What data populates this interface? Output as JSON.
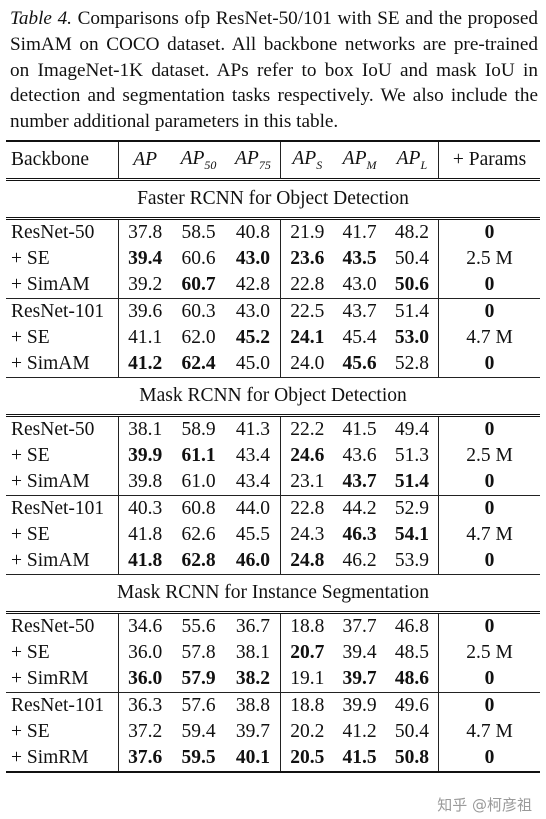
{
  "caption": {
    "label": "Table 4.",
    "text": "Comparisons ofp ResNet-50/101 with SE and the proposed SimAM on COCO dataset. All backbone networks are pre-trained on ImageNet-1K dataset. APs refer to box IoU and mask IoU in detection and segmentation tasks respectively. We also include the number additional parameters in this table."
  },
  "table": {
    "headers": {
      "backbone": "Backbone",
      "ap": "AP",
      "ap50_base": "AP",
      "ap50_sub": "50",
      "ap75_base": "AP",
      "ap75_sub": "75",
      "aps_base": "AP",
      "aps_sub": "S",
      "apm_base": "AP",
      "apm_sub": "M",
      "apl_base": "AP",
      "apl_sub": "L",
      "params": "+ Params"
    },
    "sections": [
      {
        "title": "Faster RCNN for Object Detection",
        "groups": [
          [
            {
              "backbone": "ResNet-50",
              "vals": [
                "37.8",
                "58.5",
                "40.8",
                "21.9",
                "41.7",
                "48.2"
              ],
              "params": "0"
            },
            {
              "backbone": "+ SE",
              "vals": [
                "39.4",
                "60.6",
                "43.0",
                "23.6",
                "43.5",
                "50.4"
              ],
              "params": "2.5 M"
            },
            {
              "backbone": "+ SimAM",
              "vals": [
                "39.2",
                "60.7",
                "42.8",
                "22.8",
                "43.0",
                "50.6"
              ],
              "params": "0"
            }
          ],
          [
            {
              "backbone": "ResNet-101",
              "vals": [
                "39.6",
                "60.3",
                "43.0",
                "22.5",
                "43.7",
                "51.4"
              ],
              "params": "0"
            },
            {
              "backbone": "+ SE",
              "vals": [
                "41.1",
                "62.0",
                "45.2",
                "24.1",
                "45.4",
                "53.0"
              ],
              "params": "4.7 M"
            },
            {
              "backbone": "+ SimAM",
              "vals": [
                "41.2",
                "62.4",
                "45.0",
                "24.0",
                "45.6",
                "52.8"
              ],
              "params": "0"
            }
          ]
        ]
      },
      {
        "title": "Mask RCNN for Object Detection",
        "groups": [
          [
            {
              "backbone": "ResNet-50",
              "vals": [
                "38.1",
                "58.9",
                "41.3",
                "22.2",
                "41.5",
                "49.4"
              ],
              "params": "0"
            },
            {
              "backbone": "+ SE",
              "vals": [
                "39.9",
                "61.1",
                "43.4",
                "24.6",
                "43.6",
                "51.3"
              ],
              "params": "2.5 M"
            },
            {
              "backbone": "+ SimAM",
              "vals": [
                "39.8",
                "61.0",
                "43.4",
                "23.1",
                "43.7",
                "51.4"
              ],
              "params": "0"
            }
          ],
          [
            {
              "backbone": "ResNet-101",
              "vals": [
                "40.3",
                "60.8",
                "44.0",
                "22.8",
                "44.2",
                "52.9"
              ],
              "params": "0"
            },
            {
              "backbone": "+ SE",
              "vals": [
                "41.8",
                "62.6",
                "45.5",
                "24.3",
                "46.3",
                "54.1"
              ],
              "params": "4.7 M"
            },
            {
              "backbone": "+ SimAM",
              "vals": [
                "41.8",
                "62.8",
                "46.0",
                "24.8",
                "46.2",
                "53.9"
              ],
              "params": "0"
            }
          ]
        ]
      },
      {
        "title": "Mask RCNN for Instance Segmentation",
        "groups": [
          [
            {
              "backbone": "ResNet-50",
              "vals": [
                "34.6",
                "55.6",
                "36.7",
                "18.8",
                "37.7",
                "46.8"
              ],
              "params": "0"
            },
            {
              "backbone": "+ SE",
              "vals": [
                "36.0",
                "57.8",
                "38.1",
                "20.7",
                "39.4",
                "48.5"
              ],
              "params": "2.5 M"
            },
            {
              "backbone": "+ SimRM",
              "vals": [
                "36.0",
                "57.9",
                "38.2",
                "19.1",
                "39.7",
                "48.6"
              ],
              "params": "0"
            }
          ],
          [
            {
              "backbone": "ResNet-101",
              "vals": [
                "36.3",
                "57.6",
                "38.8",
                "18.8",
                "39.9",
                "49.6"
              ],
              "params": "0"
            },
            {
              "backbone": "+ SE",
              "vals": [
                "37.2",
                "59.4",
                "39.7",
                "20.2",
                "41.2",
                "50.4"
              ],
              "params": "4.7 M"
            },
            {
              "backbone": "+ SimRM",
              "vals": [
                "37.6",
                "59.5",
                "40.1",
                "20.5",
                "41.5",
                "50.8"
              ],
              "params": "0"
            }
          ]
        ]
      }
    ]
  },
  "watermark": "知乎 @柯彦祖"
}
